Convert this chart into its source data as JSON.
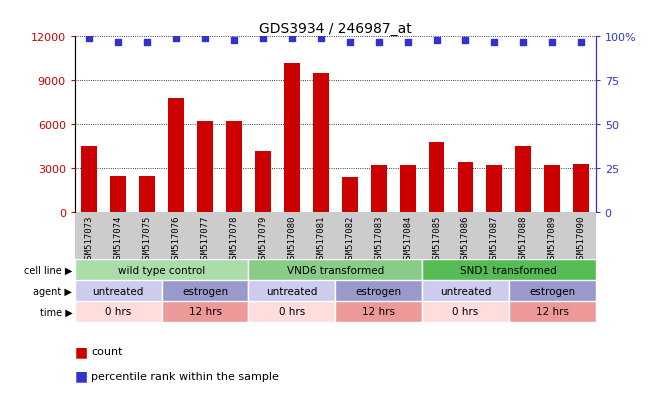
{
  "title": "GDS3934 / 246987_at",
  "samples": [
    "GSM517073",
    "GSM517074",
    "GSM517075",
    "GSM517076",
    "GSM517077",
    "GSM517078",
    "GSM517079",
    "GSM517080",
    "GSM517081",
    "GSM517082",
    "GSM517083",
    "GSM517084",
    "GSM517085",
    "GSM517086",
    "GSM517087",
    "GSM517088",
    "GSM517089",
    "GSM517090"
  ],
  "counts": [
    4500,
    2500,
    2500,
    7800,
    6200,
    6200,
    4200,
    10200,
    9500,
    2400,
    3200,
    3200,
    4800,
    3400,
    3200,
    4500,
    3200,
    3300
  ],
  "percentile": [
    99,
    97,
    97,
    99,
    99,
    98,
    99,
    99,
    99,
    97,
    97,
    97,
    98,
    98,
    97,
    97,
    97,
    97
  ],
  "bar_color": "#cc0000",
  "dot_color": "#3333cc",
  "ylim_left": [
    0,
    12000
  ],
  "yticks_left": [
    0,
    3000,
    6000,
    9000,
    12000
  ],
  "yticks_right": [
    0,
    25,
    50,
    75,
    100
  ],
  "cell_line_groups": [
    {
      "label": "wild type control",
      "start": 0,
      "end": 6,
      "color": "#aaddaa"
    },
    {
      "label": "VND6 transformed",
      "start": 6,
      "end": 12,
      "color": "#88cc88"
    },
    {
      "label": "SND1 transformed",
      "start": 12,
      "end": 18,
      "color": "#55bb55"
    }
  ],
  "agent_groups": [
    {
      "label": "untreated",
      "start": 0,
      "end": 3,
      "color": "#ccccee"
    },
    {
      "label": "estrogen",
      "start": 3,
      "end": 6,
      "color": "#9999cc"
    },
    {
      "label": "untreated",
      "start": 6,
      "end": 9,
      "color": "#ccccee"
    },
    {
      "label": "estrogen",
      "start": 9,
      "end": 12,
      "color": "#9999cc"
    },
    {
      "label": "untreated",
      "start": 12,
      "end": 15,
      "color": "#ccccee"
    },
    {
      "label": "estrogen",
      "start": 15,
      "end": 18,
      "color": "#9999cc"
    }
  ],
  "time_groups": [
    {
      "label": "0 hrs",
      "start": 0,
      "end": 3,
      "color": "#ffdddd"
    },
    {
      "label": "12 hrs",
      "start": 3,
      "end": 6,
      "color": "#ee9999"
    },
    {
      "label": "0 hrs",
      "start": 6,
      "end": 9,
      "color": "#ffdddd"
    },
    {
      "label": "12 hrs",
      "start": 9,
      "end": 12,
      "color": "#ee9999"
    },
    {
      "label": "0 hrs",
      "start": 12,
      "end": 15,
      "color": "#ffdddd"
    },
    {
      "label": "12 hrs",
      "start": 15,
      "end": 18,
      "color": "#ee9999"
    }
  ],
  "legend_count_label": "count",
  "legend_pct_label": "percentile rank within the sample",
  "bg_color": "#ffffff",
  "sample_bg_color": "#cccccc",
  "plot_bg_color": "#ffffff"
}
